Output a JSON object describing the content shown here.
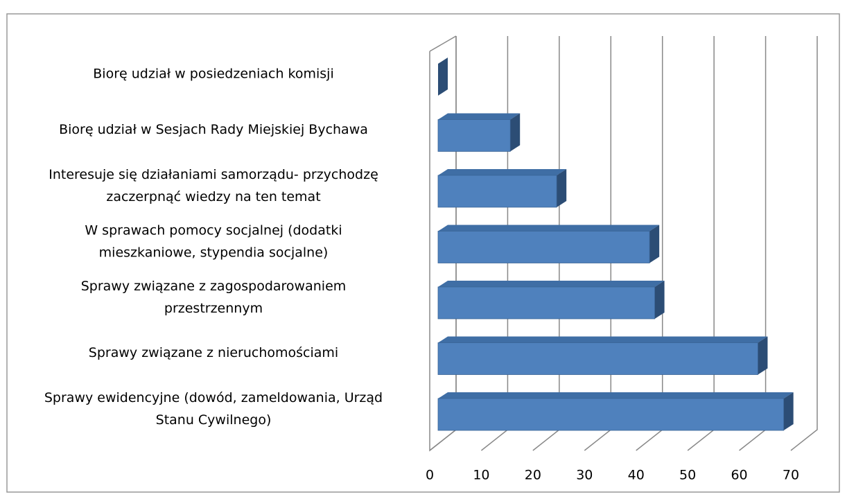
{
  "chart_data": {
    "type": "bar3d_horizontal",
    "categories": [
      "Biorę udział w posiedzeniach komisji",
      "Biorę udział w Sesjach Rady Miejskiej Bychawa",
      "Interesuje się działaniami samorządu- przychodzę\nzaczerpnąć wiedzy na ten temat",
      "W sprawach pomocy socjalnej (dodatki\nmieszkaniowe, stypendia socjalne)",
      "Sprawy związane z zagospodarowaniem\nprzestrzennym",
      "Sprawy związane z nieruchomościami",
      "Sprawy ewidencyjne (dowód, zameldowania, Urząd\nStanu Cywilnego)"
    ],
    "values": [
      0,
      14,
      23,
      41,
      42,
      62,
      67
    ],
    "color": "#4f81bd",
    "xlim": [
      0,
      70
    ],
    "xticks": [
      0,
      10,
      20,
      30,
      40,
      50,
      60,
      70
    ],
    "grid": true
  }
}
